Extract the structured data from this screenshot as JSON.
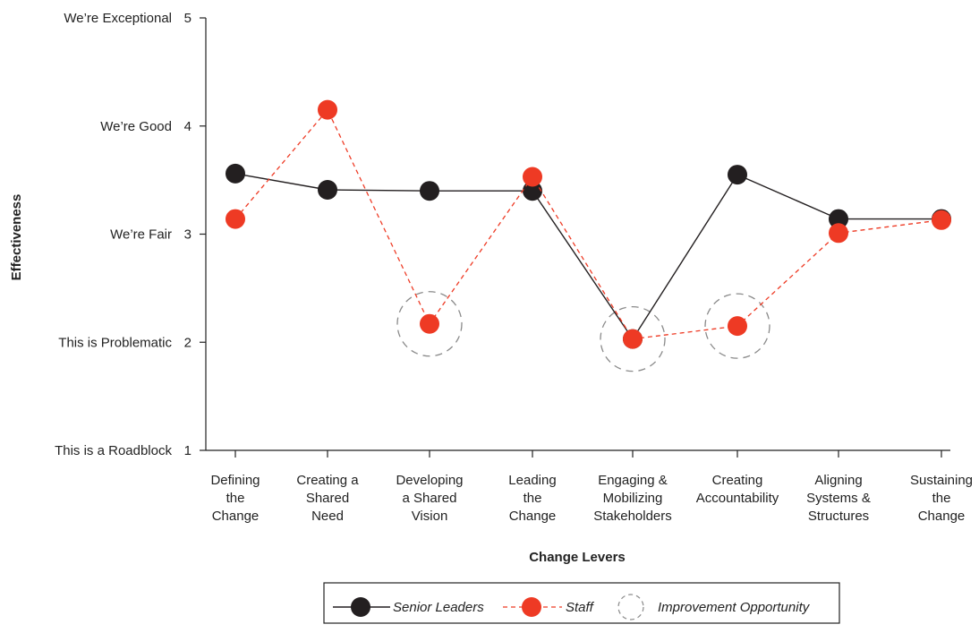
{
  "chart_data": {
    "type": "line",
    "title": "",
    "xlabel": "Change Levers",
    "ylabel": "Effectiveness",
    "ylim": [
      1,
      5
    ],
    "yticks": [
      1,
      2,
      3,
      4,
      5
    ],
    "ytick_labels": [
      "This is a Roadblock",
      "This is Problematic",
      "We’re Fair",
      "We’re Good",
      "We’re Exceptional"
    ],
    "categories": [
      [
        "Defining",
        "the",
        "Change"
      ],
      [
        "Creating a",
        "Shared",
        "Need"
      ],
      [
        "Developing",
        "a Shared",
        "Vision"
      ],
      [
        "Leading",
        "the",
        "Change"
      ],
      [
        "Engaging &",
        "Mobilizing",
        "Stakeholders"
      ],
      [
        "Creating",
        "Accountability"
      ],
      [
        "Aligning",
        "Systems &",
        "Structures"
      ],
      [
        "Sustaining",
        "the",
        "Change"
      ]
    ],
    "series": [
      {
        "name": "Senior Leaders",
        "color": "#231f20",
        "dash": false,
        "values": [
          3.56,
          3.41,
          3.4,
          3.4,
          2.03,
          3.55,
          3.14,
          3.14
        ]
      },
      {
        "name": "Staff",
        "color": "#ee3a24",
        "dash": true,
        "values": [
          3.14,
          4.15,
          2.17,
          3.53,
          2.03,
          2.15,
          3.01,
          3.13
        ]
      }
    ],
    "improvement_opportunities": [
      {
        "category_index": 2,
        "y": 2.17
      },
      {
        "category_index": 4,
        "y": 2.03
      },
      {
        "category_index": 5,
        "y": 2.15
      }
    ],
    "legend": {
      "placement": "bottom-center",
      "improvement_label": "Improvement Opportunity"
    },
    "grid": false
  }
}
